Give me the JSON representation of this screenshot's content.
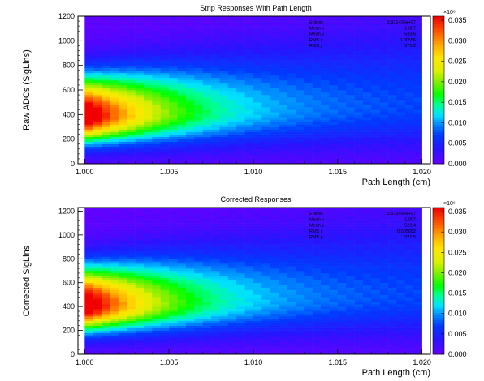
{
  "chart_data": [
    {
      "type": "heatmap",
      "title": "Strip Responses With Path Length",
      "xlabel": "Path Length (cm)",
      "ylabel": "Raw ADCs (SigLins)",
      "xlim": [
        0.9996,
        1.0205
      ],
      "ylim": [
        0,
        1200
      ],
      "x_ticks": [
        "1.000",
        "1.005",
        "1.010",
        "1.015",
        "1.020"
      ],
      "y_ticks": [
        "0",
        "200",
        "400",
        "600",
        "800",
        "1000",
        "1200"
      ],
      "z_range": [
        0,
        0.036
      ],
      "z_ticks": [
        "0.000",
        "0.005",
        "0.010",
        "0.015",
        "0.020",
        "0.025",
        "0.030",
        "0.035"
      ],
      "z_multiplier": "×10⁶",
      "peak_y": 390,
      "stats": {
        "labels": [
          "Entries",
          "Mean x",
          "Mean y",
          "RMS x",
          "RMS y"
        ],
        "values": [
          "3.831406e+07",
          "1.007",
          "533.6",
          "0.00556",
          "370.2"
        ]
      }
    },
    {
      "type": "heatmap",
      "title": "Corrected Responses",
      "xlabel": "Path Length (cm)",
      "ylabel": "Corrected SigLins",
      "xlim": [
        0.9996,
        1.0205
      ],
      "ylim": [
        0,
        1230
      ],
      "x_ticks": [
        "1.000",
        "1.005",
        "1.010",
        "1.015",
        "1.020"
      ],
      "y_ticks": [
        "0",
        "200",
        "400",
        "600",
        "800",
        "1000",
        "1200"
      ],
      "z_range": [
        0,
        0.036
      ],
      "z_ticks": [
        "0.000",
        "0.005",
        "0.010",
        "0.015",
        "0.020",
        "0.025",
        "0.030",
        "0.035"
      ],
      "z_multiplier": "×10⁶",
      "peak_y": 410,
      "stats": {
        "labels": [
          "Entries",
          "Mean x",
          "Mean y",
          "RMS x",
          "RMS y"
        ],
        "values": [
          "3.831406e+07",
          "1.007",
          "529.4",
          "0.005652",
          "371.5"
        ]
      }
    }
  ]
}
